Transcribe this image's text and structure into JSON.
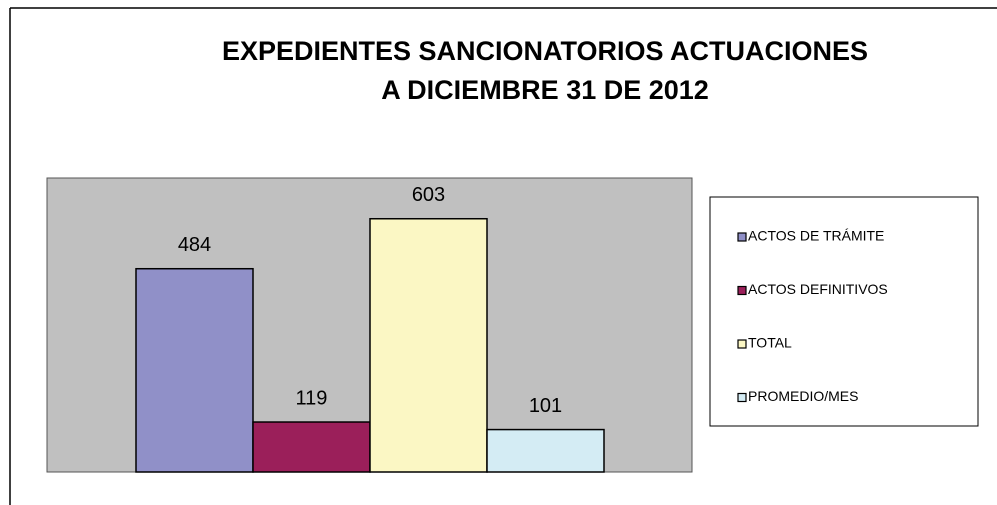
{
  "chart_data": {
    "type": "bar",
    "title": [
      "EXPEDIENTES SANCIONATORIOS ACTUACIONES",
      "A DICIEMBRE 31 DE 2012"
    ],
    "series": [
      {
        "name": "ACTOS DE TRÁMITE",
        "color": "#9090c8",
        "values": [
          484
        ]
      },
      {
        "name": "ACTOS DEFINITIVOS",
        "color": "#9b1f5a",
        "values": [
          119
        ]
      },
      {
        "name": "TOTAL",
        "color": "#fbf7c4",
        "values": [
          603
        ]
      },
      {
        "name": "PROMEDIO/MES",
        "color": "#d4ecf4",
        "values": [
          101
        ]
      }
    ],
    "ylim": [
      0,
      700
    ],
    "legend": "right"
  }
}
